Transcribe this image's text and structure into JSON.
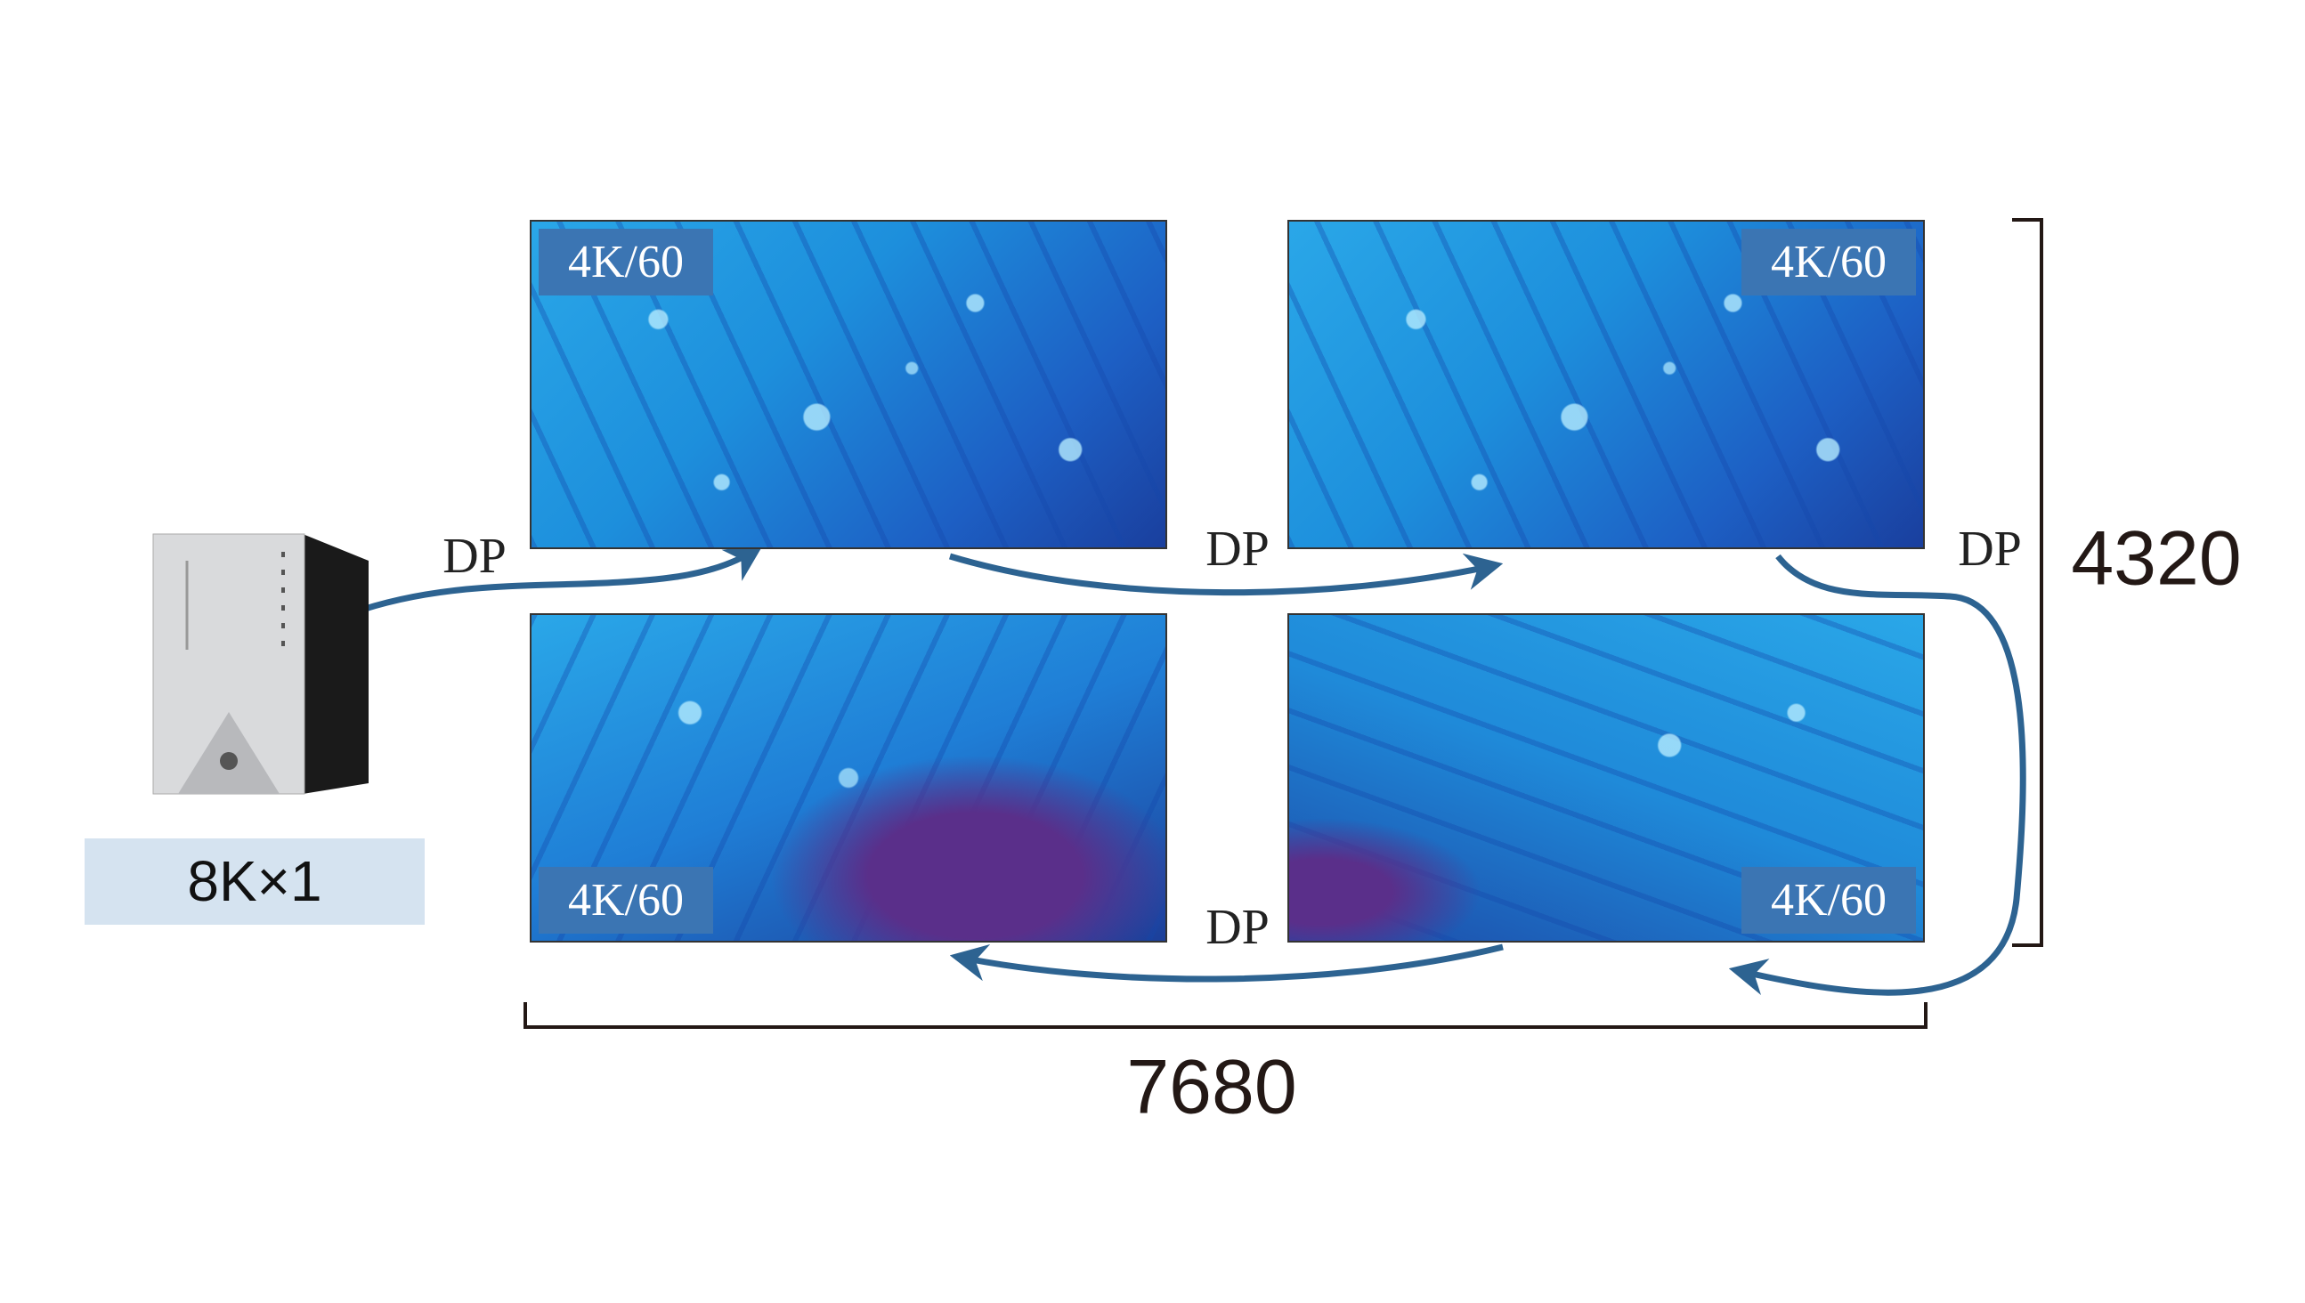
{
  "source": {
    "icon": "desktop-tower-pc-icon",
    "label": "8K×1"
  },
  "displays": [
    {
      "position": "top-left",
      "label": "4K/60"
    },
    {
      "position": "top-right",
      "label": "4K/60"
    },
    {
      "position": "bottom-left",
      "label": "4K/60"
    },
    {
      "position": "bottom-right",
      "label": "4K/60"
    }
  ],
  "connections": [
    "DP",
    "DP",
    "DP",
    "DP"
  ],
  "dimensions": {
    "width": "7680",
    "height": "4320"
  },
  "colors": {
    "arrow": "#2d6391",
    "tag": "#3b75b3",
    "source_label_bg": "#d5e3f0"
  }
}
